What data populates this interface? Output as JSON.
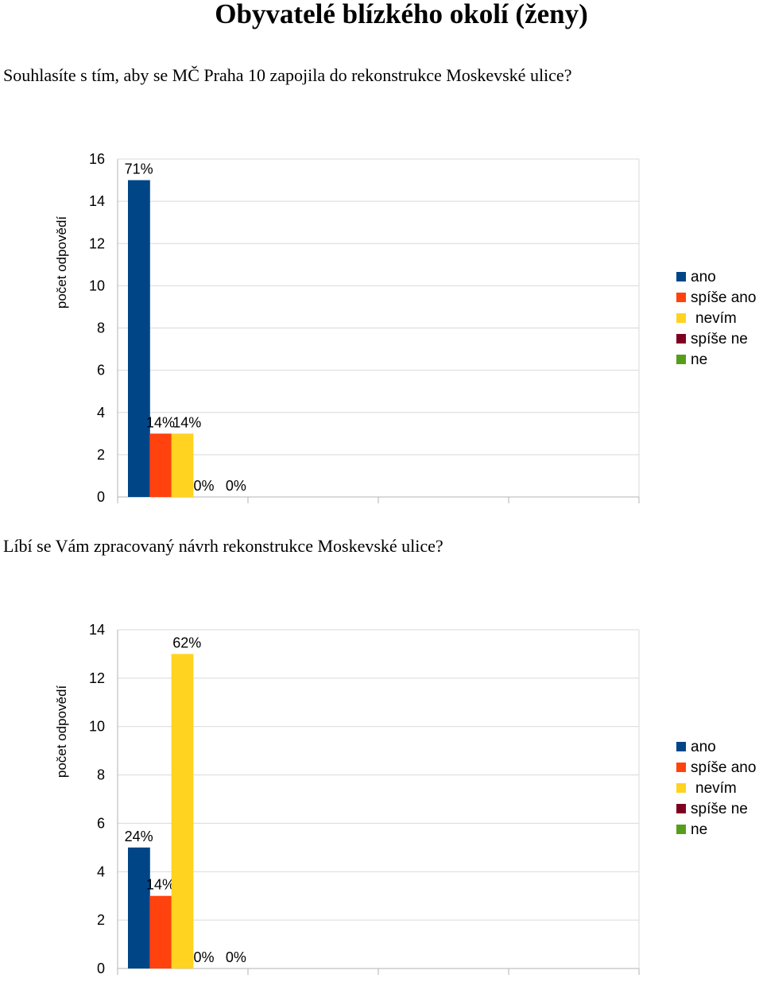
{
  "page": {
    "title": "Obyvatelé blízkého okolí (ženy)"
  },
  "questions": [
    "Souhlasíte s tím, aby se MČ Praha 10 zapojila do rekonstrukce Moskevské ulice?",
    "Líbí se Vám zpracovaný návrh rekonstrukce Moskevské ulice?"
  ],
  "chart_data": [
    {
      "type": "bar",
      "title": "",
      "xlabel": "",
      "ylabel": "počet odpovědí",
      "ylim": [
        0,
        16
      ],
      "yticks": [
        0,
        2,
        4,
        6,
        8,
        10,
        12,
        14,
        16
      ],
      "grid": true,
      "legend_position": "right",
      "series": [
        {
          "name": "ano",
          "color": "#004586",
          "values": [
            15
          ],
          "label": "71%"
        },
        {
          "name": "spíše ano",
          "color": "#ff420e",
          "values": [
            3
          ],
          "label": "14%"
        },
        {
          "name": "nevím",
          "color": "#ffd320",
          "values": [
            3
          ],
          "label": "14%"
        },
        {
          "name": "spíše ne",
          "color": "#7e0021",
          "values": [
            0
          ],
          "label": "0%"
        },
        {
          "name": "ne",
          "color": "#579d1c",
          "values": [
            0
          ],
          "label": "0%"
        }
      ]
    },
    {
      "type": "bar",
      "title": "",
      "xlabel": "",
      "ylabel": "počet odpovědí",
      "ylim": [
        0,
        14
      ],
      "yticks": [
        0,
        2,
        4,
        6,
        8,
        10,
        12,
        14
      ],
      "grid": true,
      "legend_position": "right",
      "series": [
        {
          "name": "ano",
          "color": "#004586",
          "values": [
            5
          ],
          "label": "24%"
        },
        {
          "name": "spíše ano",
          "color": "#ff420e",
          "values": [
            3
          ],
          "label": "14%"
        },
        {
          "name": "nevím",
          "color": "#ffd320",
          "values": [
            13
          ],
          "label": "62%"
        },
        {
          "name": "spíše ne",
          "color": "#7e0021",
          "values": [
            0
          ],
          "label": "0%"
        },
        {
          "name": "ne",
          "color": "#579d1c",
          "values": [
            0
          ],
          "label": "0%"
        }
      ]
    }
  ]
}
